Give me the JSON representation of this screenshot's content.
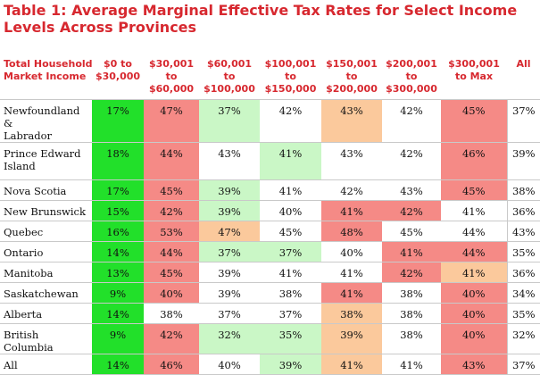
{
  "title": "Table 1: Average Marginal Effective Tax Rates for Select Income Levels Across Provinces",
  "columns": [
    [
      "Total Household",
      "Market Income"
    ],
    [
      "$0 to",
      "$30,000"
    ],
    [
      "$30,001",
      "to",
      "$60,000"
    ],
    [
      "$60,001",
      "to",
      "$100,000"
    ],
    [
      "$100,001",
      "to",
      "$150,000"
    ],
    [
      "$150,001",
      "to",
      "$200,000"
    ],
    [
      "$200,001",
      "to",
      "$300,000"
    ],
    [
      "$300,001",
      "to Max"
    ],
    [
      "All"
    ]
  ],
  "rows": [
    {
      "name": [
        "Newfoundland &",
        "Labrador"
      ],
      "values": [
        "17%",
        "47%",
        "37%",
        "42%",
        "43%",
        "42%",
        "45%",
        "37%"
      ],
      "colors": [
        "g",
        "r",
        "lg",
        "w",
        "o",
        "w",
        "r",
        "w"
      ]
    },
    {
      "name": [
        "Prince Edward",
        "Island"
      ],
      "values": [
        "18%",
        "44%",
        "43%",
        "41%",
        "43%",
        "42%",
        "46%",
        "39%"
      ],
      "colors": [
        "g",
        "r",
        "w",
        "lg",
        "w",
        "w",
        "r",
        "w"
      ]
    },
    {
      "name": [
        "Nova Scotia"
      ],
      "values": [
        "17%",
        "45%",
        "39%",
        "41%",
        "42%",
        "43%",
        "45%",
        "38%"
      ],
      "colors": [
        "g",
        "r",
        "lg",
        "w",
        "w",
        "w",
        "r",
        "w"
      ]
    },
    {
      "name": [
        "New Brunswick"
      ],
      "values": [
        "15%",
        "42%",
        "39%",
        "40%",
        "41%",
        "42%",
        "41%",
        "36%"
      ],
      "colors": [
        "g",
        "r",
        "lg",
        "w",
        "r",
        "r",
        "w",
        "w"
      ]
    },
    {
      "name": [
        "Quebec"
      ],
      "values": [
        "16%",
        "53%",
        "47%",
        "45%",
        "48%",
        "45%",
        "44%",
        "43%"
      ],
      "colors": [
        "g",
        "r",
        "o",
        "w",
        "r",
        "w",
        "w",
        "w"
      ]
    },
    {
      "name": [
        "Ontario"
      ],
      "values": [
        "14%",
        "44%",
        "37%",
        "37%",
        "40%",
        "41%",
        "44%",
        "35%"
      ],
      "colors": [
        "g",
        "r",
        "lg",
        "lg",
        "w",
        "r",
        "r",
        "w"
      ]
    },
    {
      "name": [
        "Manitoba"
      ],
      "values": [
        "13%",
        "45%",
        "39%",
        "41%",
        "41%",
        "42%",
        "41%",
        "36%"
      ],
      "colors": [
        "g",
        "r",
        "w",
        "w",
        "w",
        "r",
        "o",
        "w"
      ]
    },
    {
      "name": [
        "Saskatchewan"
      ],
      "values": [
        "9%",
        "40%",
        "39%",
        "38%",
        "41%",
        "38%",
        "40%",
        "34%"
      ],
      "colors": [
        "g",
        "r",
        "w",
        "w",
        "r",
        "w",
        "r",
        "w"
      ]
    },
    {
      "name": [
        "Alberta"
      ],
      "values": [
        "14%",
        "38%",
        "37%",
        "37%",
        "38%",
        "38%",
        "40%",
        "35%"
      ],
      "colors": [
        "g",
        "w",
        "w",
        "w",
        "o",
        "w",
        "r",
        "w"
      ]
    },
    {
      "name": [
        "British Columbia"
      ],
      "values": [
        "9%",
        "42%",
        "32%",
        "35%",
        "39%",
        "38%",
        "40%",
        "32%"
      ],
      "colors": [
        "g",
        "r",
        "lg",
        "lg",
        "o",
        "w",
        "r",
        "w"
      ]
    },
    {
      "name": [
        "All"
      ],
      "values": [
        "14%",
        "46%",
        "40%",
        "39%",
        "41%",
        "41%",
        "43%",
        "37%"
      ],
      "colors": [
        "g",
        "r",
        "w",
        "lg",
        "o",
        "w",
        "r",
        "w"
      ]
    }
  ]
}
